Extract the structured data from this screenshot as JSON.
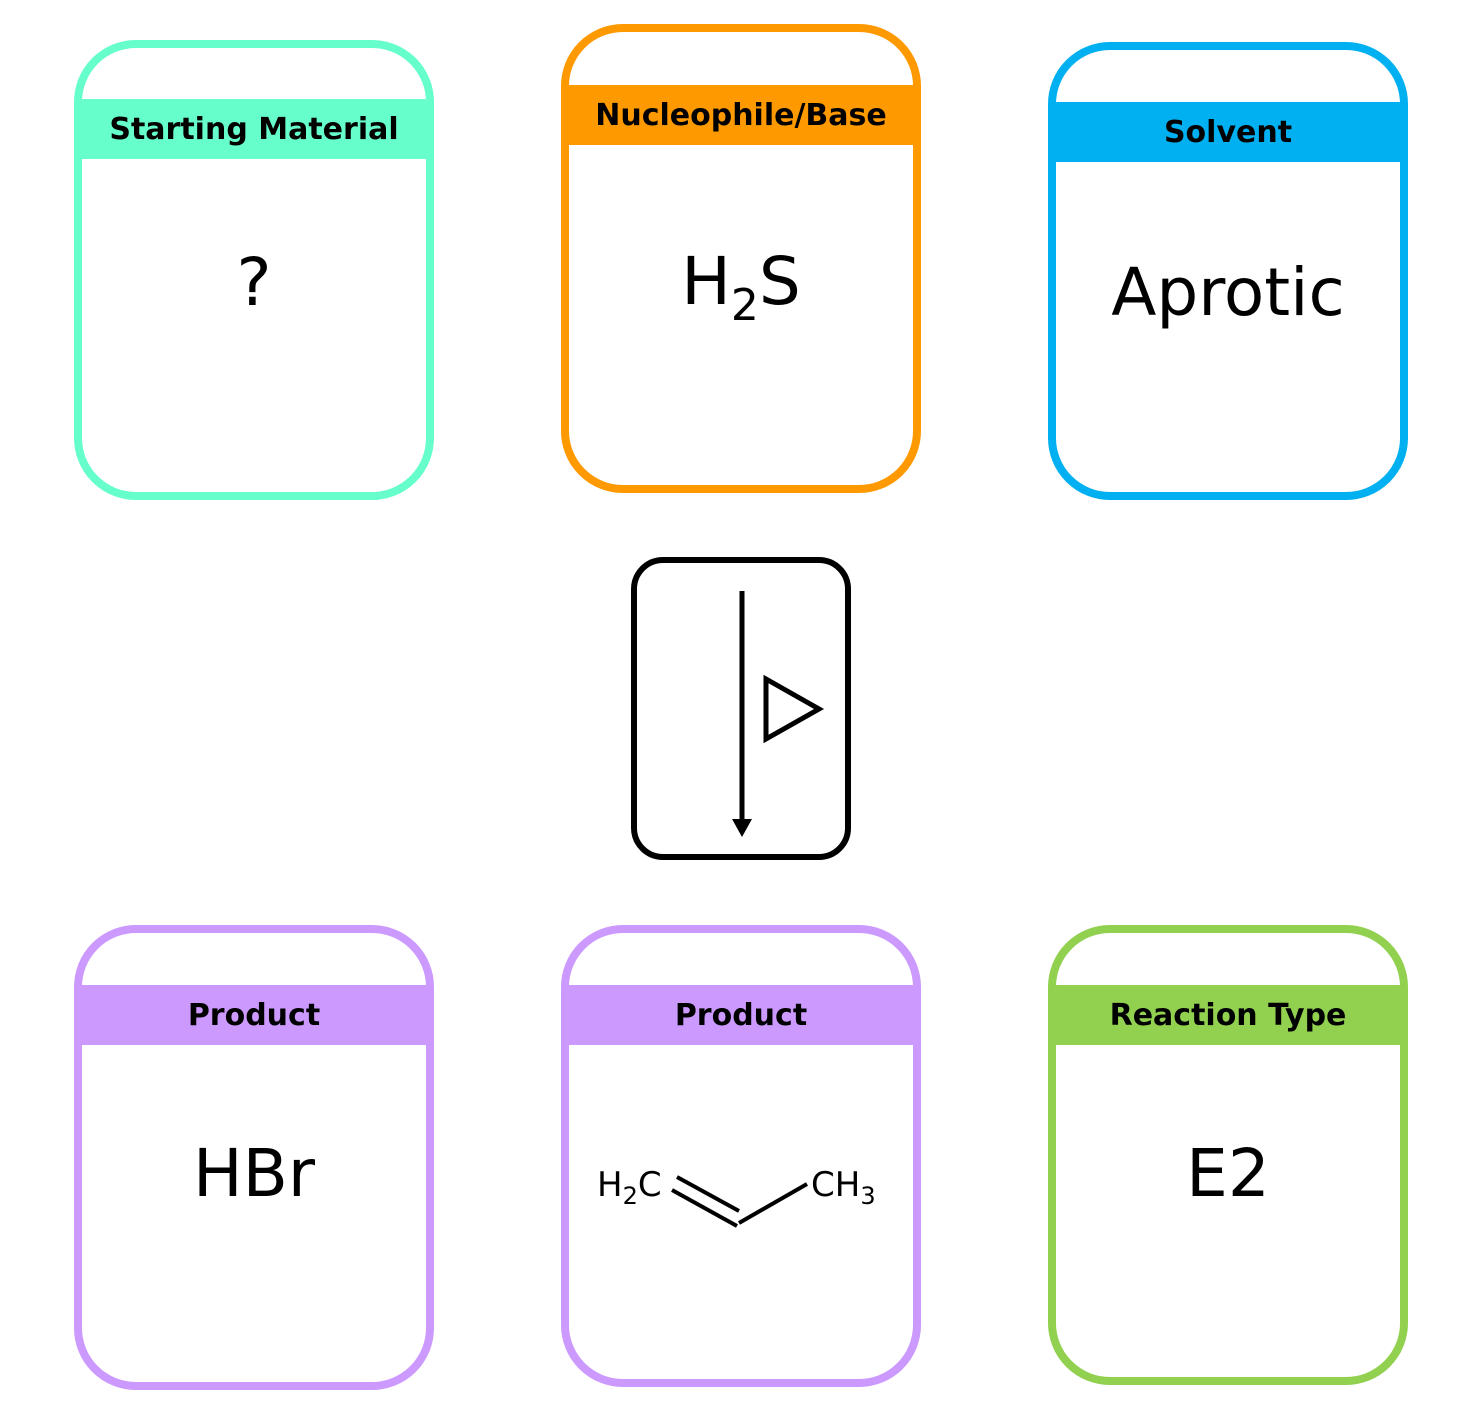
{
  "colors": {
    "starting_material": "#66ffcc",
    "nucleophile_base": "#ff9900",
    "solvent": "#00b0f0",
    "product": "#cc99ff",
    "reaction_type": "#92d050"
  },
  "cards": {
    "starting_material": {
      "title": "Starting Material",
      "value": "?"
    },
    "nucleophile_base": {
      "title": "Nucleophile/Base",
      "value_main": "H",
      "value_sub": "2",
      "value_end": "S"
    },
    "solvent": {
      "title": "Solvent",
      "value": "Aprotic"
    },
    "product_1": {
      "title": "Product",
      "value": "HBr"
    },
    "product_2": {
      "title": "Product",
      "left_group": "H",
      "left_sub": "2",
      "left_end": "C",
      "right_group": "CH",
      "right_sub": "3"
    },
    "reaction_type": {
      "title": "Reaction Type",
      "value": "E2"
    }
  },
  "center": {
    "symbol": "reaction-arrow-with-heat-triangle"
  }
}
